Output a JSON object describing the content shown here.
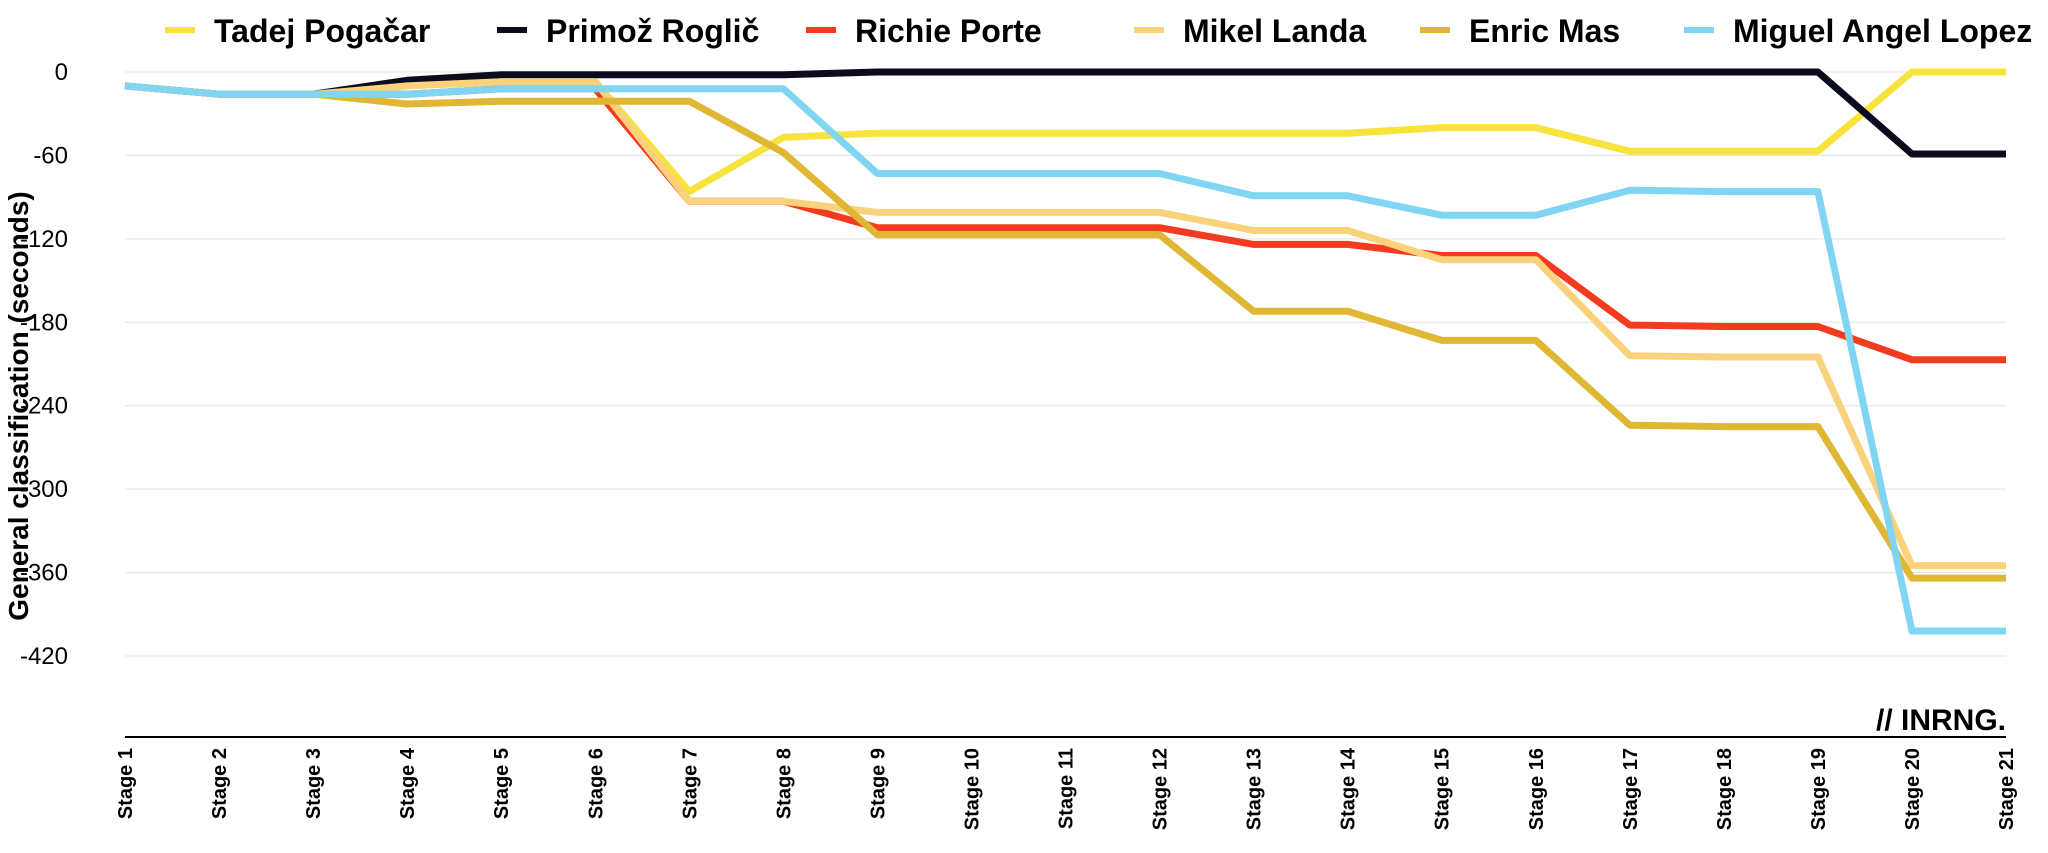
{
  "chart_data": {
    "type": "line",
    "ylabel": "General classification (seconds)",
    "ylim": [
      -480,
      0
    ],
    "yticks": [
      0,
      -60,
      -120,
      -180,
      -240,
      -300,
      -360,
      -420
    ],
    "grid": true,
    "legend": "top",
    "watermark": "// INRNG.",
    "categories": [
      "Stage 1",
      "Stage 2",
      "Stage 3",
      "Stage 4",
      "Stage 5",
      "Stage 6",
      "Stage 7",
      "Stage 8",
      "Stage 9",
      "Stage 10",
      "Stage 11",
      "Stage 12",
      "Stage 13",
      "Stage 14",
      "Stage 15",
      "Stage 16",
      "Stage 17",
      "Stage 18",
      "Stage 19",
      "Stage 20",
      "Stage 21"
    ],
    "series": [
      {
        "name": "Tadej Pogačar",
        "color": "#f7e33b",
        "values": [
          -10,
          -16,
          -16,
          -10,
          -7,
          -7,
          -86,
          -47,
          -44,
          -44,
          -44,
          -44,
          -44,
          -44,
          -40,
          -40,
          -57,
          -57,
          -57,
          0,
          0
        ]
      },
      {
        "name": "Primož Roglič",
        "color": "#0b0b1e",
        "values": [
          -10,
          -16,
          -16,
          -6,
          -2,
          -2,
          -2,
          -2,
          0,
          0,
          0,
          0,
          0,
          0,
          0,
          0,
          0,
          0,
          0,
          -59,
          -59
        ]
      },
      {
        "name": "Richie Porte",
        "color": "#f43a1f",
        "values": [
          -10,
          -16,
          -16,
          -16,
          -12,
          -12,
          -93,
          -93,
          -112,
          -112,
          -112,
          -112,
          -124,
          -124,
          -132,
          -132,
          -182,
          -183,
          -183,
          -207,
          -207
        ]
      },
      {
        "name": "Mikel Landa",
        "color": "#fbd27c",
        "values": [
          -10,
          -16,
          -16,
          -10,
          -7,
          -7,
          -93,
          -93,
          -101,
          -101,
          -101,
          -101,
          -114,
          -114,
          -135,
          -135,
          -204,
          -205,
          -205,
          -355,
          -355
        ]
      },
      {
        "name": "Enric Mas",
        "color": "#dfb733",
        "values": [
          -10,
          -16,
          -16,
          -23,
          -21,
          -21,
          -21,
          -58,
          -117,
          -117,
          -117,
          -117,
          -172,
          -172,
          -193,
          -193,
          -254,
          -255,
          -255,
          -364,
          -364
        ]
      },
      {
        "name": "Miguel Angel Lopez",
        "color": "#7fd5f2",
        "values": [
          -10,
          -16,
          -16,
          -16,
          -12,
          -12,
          -12,
          -12,
          -73,
          -73,
          -73,
          -73,
          -89,
          -89,
          -103,
          -103,
          -85,
          -86,
          -86,
          -402,
          -402
        ]
      }
    ]
  }
}
